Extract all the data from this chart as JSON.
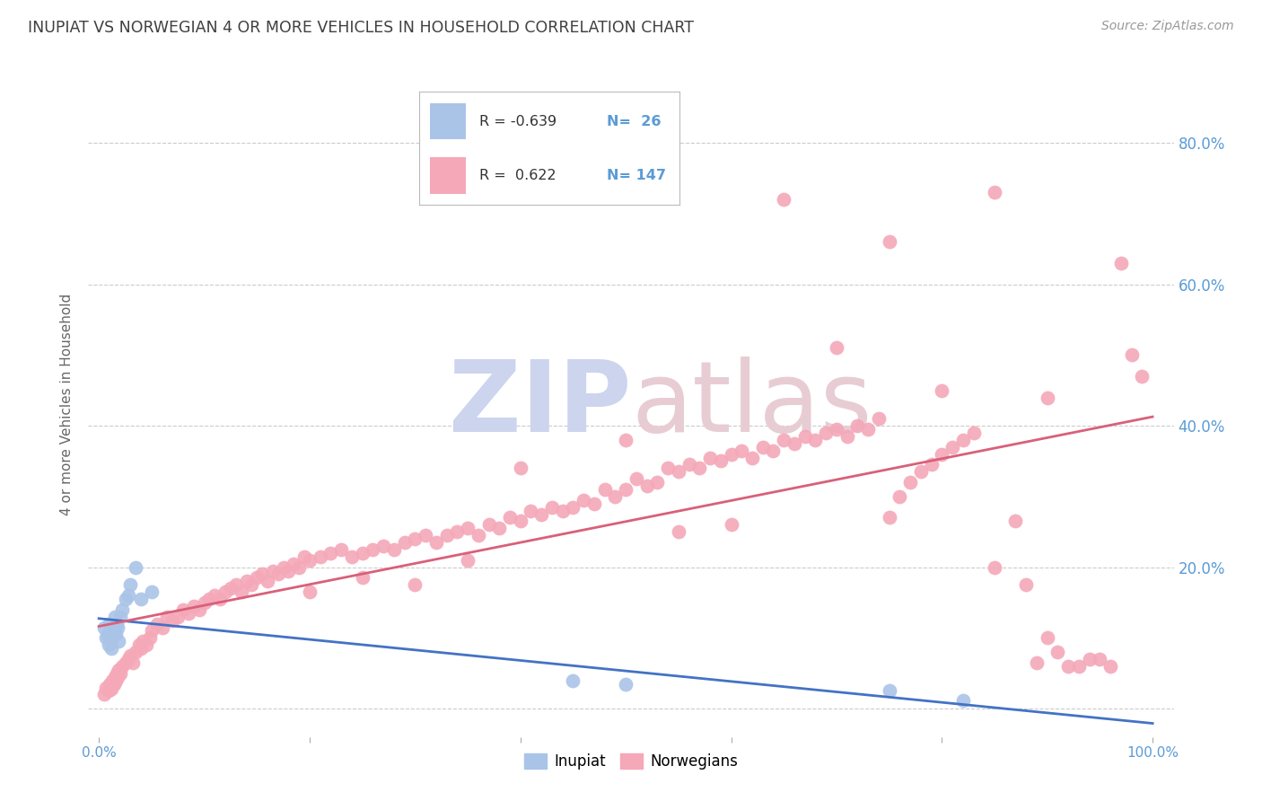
{
  "title": "INUPIAT VS NORWEGIAN 4 OR MORE VEHICLES IN HOUSEHOLD CORRELATION CHART",
  "source": "Source: ZipAtlas.com",
  "ylabel": "4 or more Vehicles in Household",
  "xlim": [
    -0.01,
    1.02
  ],
  "ylim": [
    -0.04,
    0.9
  ],
  "inupiat_color": "#aac4e8",
  "norwegian_color": "#f4a8b8",
  "inupiat_line_color": "#4472c4",
  "norwegian_line_color": "#d9607a",
  "watermark_zip_color": "#ccd4ee",
  "watermark_atlas_color": "#e8ccd4",
  "background_color": "#ffffff",
  "grid_color": "#cccccc",
  "axis_label_color": "#5b9bd5",
  "title_color": "#404040",
  "legend_r1": "R = -0.639",
  "legend_n1": "N=  26",
  "legend_r2": "R =  0.622",
  "legend_n2": "N= 147",
  "inupiat_x": [
    0.005,
    0.007,
    0.008,
    0.009,
    0.01,
    0.011,
    0.012,
    0.013,
    0.014,
    0.015,
    0.016,
    0.017,
    0.018,
    0.019,
    0.02,
    0.022,
    0.025,
    0.028,
    0.03,
    0.035,
    0.04,
    0.05,
    0.45,
    0.5,
    0.75,
    0.82
  ],
  "inupiat_y": [
    0.115,
    0.1,
    0.105,
    0.09,
    0.12,
    0.095,
    0.085,
    0.1,
    0.11,
    0.13,
    0.105,
    0.12,
    0.115,
    0.095,
    0.13,
    0.14,
    0.155,
    0.16,
    0.175,
    0.2,
    0.155,
    0.165,
    0.04,
    0.035,
    0.025,
    0.012
  ],
  "norwegian_x": [
    0.005,
    0.007,
    0.009,
    0.01,
    0.011,
    0.012,
    0.013,
    0.014,
    0.015,
    0.016,
    0.017,
    0.018,
    0.019,
    0.02,
    0.022,
    0.025,
    0.028,
    0.03,
    0.032,
    0.035,
    0.038,
    0.04,
    0.042,
    0.045,
    0.048,
    0.05,
    0.055,
    0.06,
    0.065,
    0.07,
    0.075,
    0.08,
    0.085,
    0.09,
    0.095,
    0.1,
    0.105,
    0.11,
    0.115,
    0.12,
    0.125,
    0.13,
    0.135,
    0.14,
    0.145,
    0.15,
    0.155,
    0.16,
    0.165,
    0.17,
    0.175,
    0.18,
    0.185,
    0.19,
    0.195,
    0.2,
    0.21,
    0.22,
    0.23,
    0.24,
    0.25,
    0.26,
    0.27,
    0.28,
    0.29,
    0.3,
    0.31,
    0.32,
    0.33,
    0.34,
    0.35,
    0.36,
    0.37,
    0.38,
    0.39,
    0.4,
    0.41,
    0.42,
    0.43,
    0.44,
    0.45,
    0.46,
    0.47,
    0.48,
    0.49,
    0.5,
    0.51,
    0.52,
    0.53,
    0.54,
    0.55,
    0.56,
    0.57,
    0.58,
    0.59,
    0.6,
    0.61,
    0.62,
    0.63,
    0.64,
    0.65,
    0.66,
    0.67,
    0.68,
    0.69,
    0.7,
    0.71,
    0.72,
    0.73,
    0.74,
    0.75,
    0.76,
    0.77,
    0.78,
    0.79,
    0.8,
    0.81,
    0.82,
    0.83,
    0.85,
    0.87,
    0.88,
    0.89,
    0.9,
    0.91,
    0.92,
    0.93,
    0.94,
    0.95,
    0.96,
    0.97,
    0.98,
    0.99,
    0.5,
    0.6,
    0.7,
    0.8,
    0.55,
    0.65,
    0.75,
    0.85,
    0.9,
    0.35,
    0.4,
    0.25,
    0.3,
    0.2
  ],
  "norwegian_y": [
    0.02,
    0.03,
    0.025,
    0.035,
    0.03,
    0.028,
    0.04,
    0.035,
    0.045,
    0.04,
    0.05,
    0.045,
    0.055,
    0.05,
    0.06,
    0.065,
    0.07,
    0.075,
    0.065,
    0.08,
    0.09,
    0.085,
    0.095,
    0.09,
    0.1,
    0.11,
    0.12,
    0.115,
    0.13,
    0.125,
    0.13,
    0.14,
    0.135,
    0.145,
    0.14,
    0.15,
    0.155,
    0.16,
    0.155,
    0.165,
    0.17,
    0.175,
    0.165,
    0.18,
    0.175,
    0.185,
    0.19,
    0.18,
    0.195,
    0.19,
    0.2,
    0.195,
    0.205,
    0.2,
    0.215,
    0.21,
    0.215,
    0.22,
    0.225,
    0.215,
    0.22,
    0.225,
    0.23,
    0.225,
    0.235,
    0.24,
    0.245,
    0.235,
    0.245,
    0.25,
    0.255,
    0.245,
    0.26,
    0.255,
    0.27,
    0.265,
    0.28,
    0.275,
    0.285,
    0.28,
    0.285,
    0.295,
    0.29,
    0.31,
    0.3,
    0.31,
    0.325,
    0.315,
    0.32,
    0.34,
    0.335,
    0.345,
    0.34,
    0.355,
    0.35,
    0.36,
    0.365,
    0.355,
    0.37,
    0.365,
    0.38,
    0.375,
    0.385,
    0.38,
    0.39,
    0.395,
    0.385,
    0.4,
    0.395,
    0.41,
    0.27,
    0.3,
    0.32,
    0.335,
    0.345,
    0.36,
    0.37,
    0.38,
    0.39,
    0.2,
    0.265,
    0.175,
    0.065,
    0.1,
    0.08,
    0.06,
    0.06,
    0.07,
    0.07,
    0.06,
    0.63,
    0.5,
    0.47,
    0.38,
    0.26,
    0.51,
    0.45,
    0.25,
    0.72,
    0.66,
    0.73,
    0.44,
    0.21,
    0.34,
    0.185,
    0.175,
    0.165
  ]
}
